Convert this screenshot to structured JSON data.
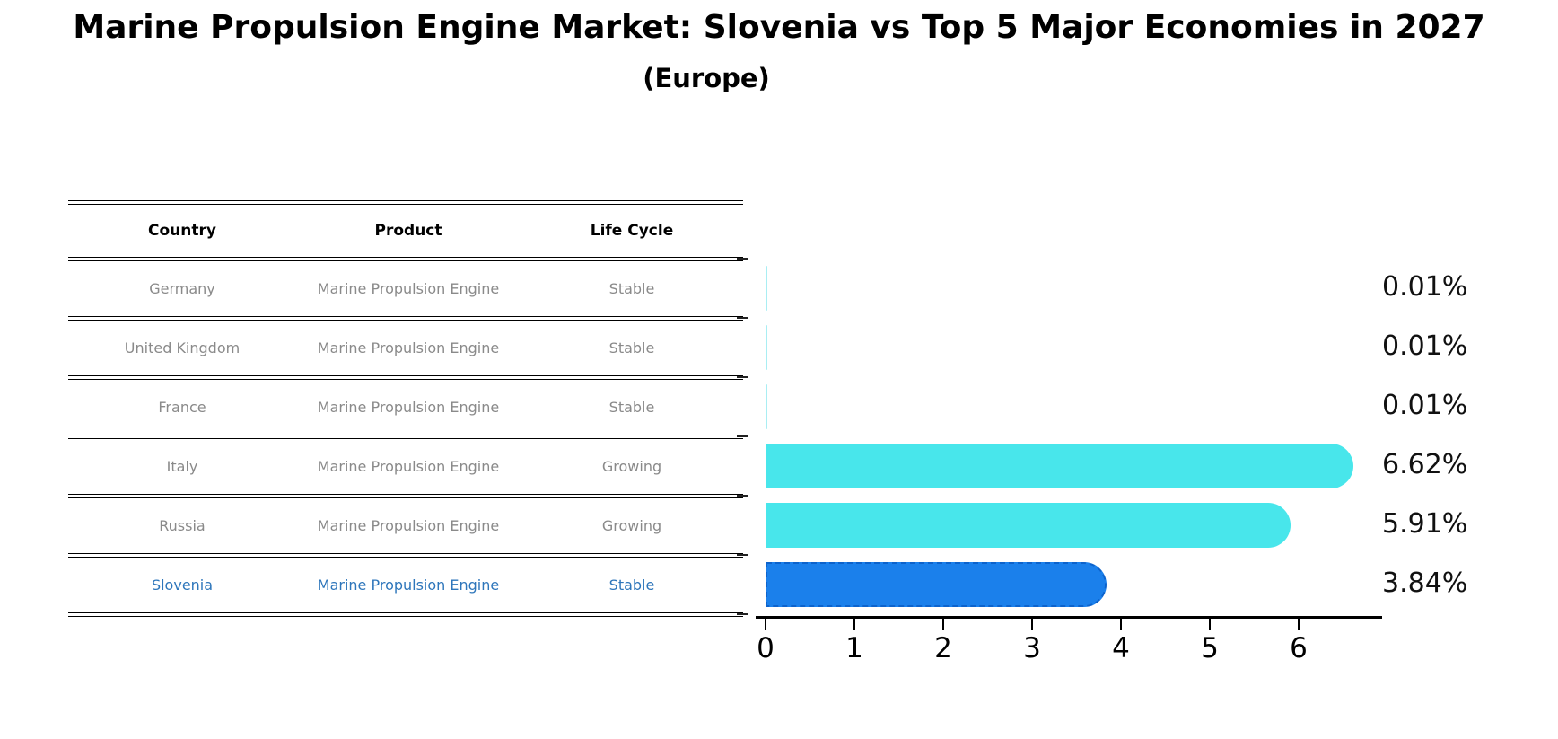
{
  "title": "Marine Propulsion Engine Market: Slovenia vs Top 5 Major Economies in 2027",
  "subtitle": "(Europe)",
  "table": {
    "headers": [
      "Country",
      "Product",
      "Life Cycle"
    ],
    "rows": [
      {
        "country": "Germany",
        "product": "Marine Propulsion Engine",
        "life_cycle": "Stable",
        "highlighted": false
      },
      {
        "country": "United Kingdom",
        "product": "Marine Propulsion Engine",
        "life_cycle": "Stable",
        "highlighted": false
      },
      {
        "country": "France",
        "product": "Marine Propulsion Engine",
        "life_cycle": "Stable",
        "highlighted": false
      },
      {
        "country": "Italy",
        "product": "Marine Propulsion Engine",
        "life_cycle": "Growing",
        "highlighted": false
      },
      {
        "country": "Russia",
        "product": "Marine Propulsion Engine",
        "life_cycle": "Growing",
        "highlighted": false
      },
      {
        "country": "Slovenia",
        "product": "Marine Propulsion Engine",
        "life_cycle": "Stable",
        "highlighted": true
      }
    ]
  },
  "chart_data": {
    "type": "bar",
    "orientation": "horizontal",
    "categories": [
      "Germany",
      "United Kingdom",
      "France",
      "Italy",
      "Russia",
      "Slovenia"
    ],
    "values": [
      0.01,
      0.01,
      0.01,
      6.62,
      5.91,
      3.84
    ],
    "value_labels": [
      "0.01%",
      "0.01%",
      "0.01%",
      "6.62%",
      "5.91%",
      "3.84%"
    ],
    "x_ticks": [
      "0",
      "1",
      "2",
      "3",
      "4",
      "5",
      "6"
    ],
    "xlim": [
      0,
      6.95
    ],
    "grid": false,
    "legend": false,
    "highlight_index": 5,
    "bar_color": "#48E6EB",
    "highlight_bar_color": "#1B80EB",
    "highlight_text_color": "#2E76BB",
    "table_text_color": "#8a8a8a",
    "value_unit": "%"
  }
}
